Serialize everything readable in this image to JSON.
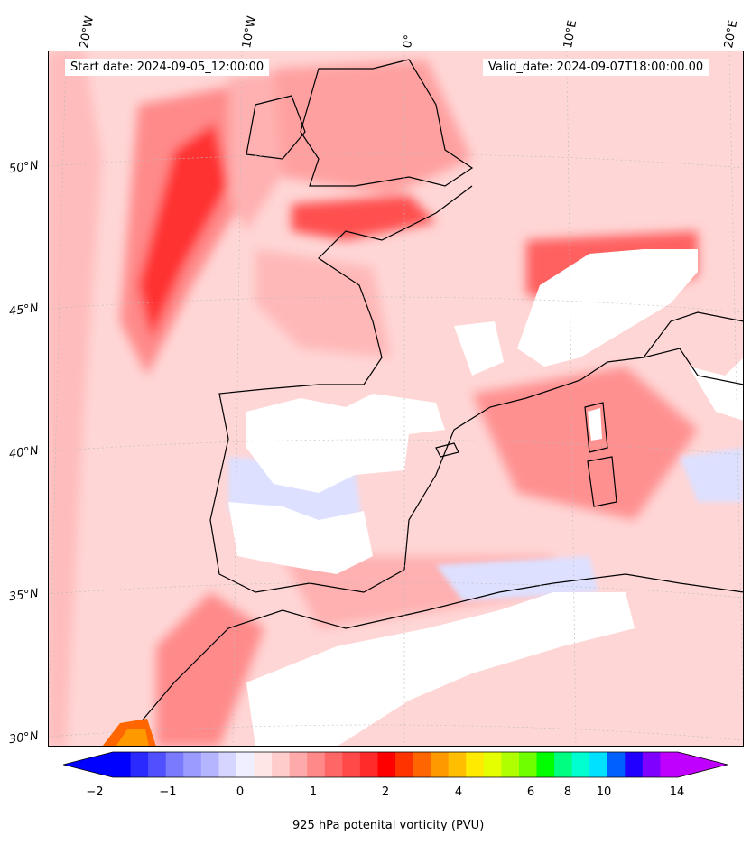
{
  "header": {
    "start_date": "Start date: 2024-09-05_12:00:00",
    "valid_date": "Valid_date: 2024-09-07T18:00:00.00"
  },
  "longitude_labels": [
    "20°W",
    "10°W",
    "0°",
    "10°E",
    "20°E"
  ],
  "latitude_labels": [
    "50°N",
    "45°N",
    "40°N",
    "35°N",
    "30°N"
  ],
  "colorbar": {
    "label": "925 hPa potenital vorticity (PVU)",
    "ticks": [
      "−2",
      "−1",
      "0",
      "1",
      "2",
      "4",
      "6",
      "8",
      "10",
      "14"
    ],
    "colors": [
      "#0000ff",
      "#2a2aff",
      "#5050ff",
      "#7a7aff",
      "#9a9aff",
      "#b5b5ff",
      "#d5d5ff",
      "#efefff",
      "#ffe6e6",
      "#ffcccc",
      "#ffaaaa",
      "#ff8888",
      "#ff6666",
      "#ff4848",
      "#ff2a2a",
      "#ff0000",
      "#ff3300",
      "#ff6600",
      "#ff9900",
      "#ffbf00",
      "#ffea00",
      "#e6ff00",
      "#b0ff00",
      "#70ff00",
      "#00ff00",
      "#00ff80",
      "#00ffd0",
      "#00e0ff",
      "#0060ff",
      "#2000ff",
      "#8000ff",
      "#c000ff"
    ],
    "extend_min_color": "#0000ff",
    "extend_max_color": "#c000ff"
  },
  "map_colors": {
    "background": "#ffd6d6",
    "strong": "#ff2020",
    "medium": "#ff7070",
    "light": "#ffb0b0",
    "negative": "#dde0ff",
    "masked": "#ffffff",
    "coast": "#000000"
  }
}
